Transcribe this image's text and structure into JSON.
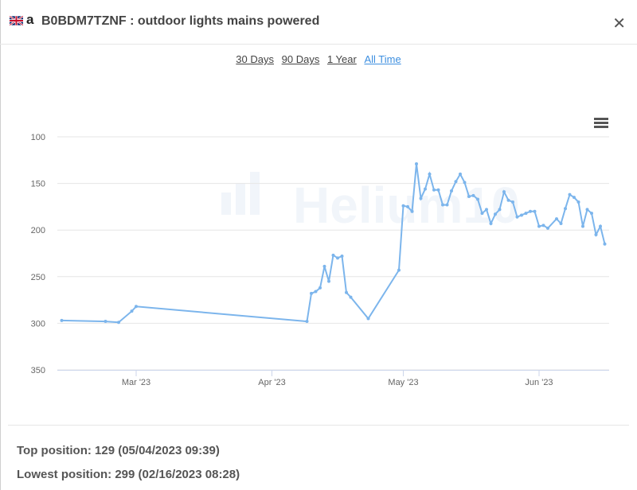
{
  "header": {
    "flag": "uk-flag-icon",
    "marketplace_icon": "amazon-icon",
    "title": "B0BDM7TZNF : outdoor lights mains powered",
    "close_icon": "close-icon"
  },
  "ranges": [
    {
      "label": "30 Days",
      "active": false
    },
    {
      "label": "90 Days",
      "active": false
    },
    {
      "label": "1 Year",
      "active": false
    },
    {
      "label": "All Time",
      "active": true
    }
  ],
  "chart_data": {
    "type": "line",
    "title": "",
    "xlabel": "",
    "ylabel": "",
    "y_reversed": true,
    "ylim": [
      350,
      100
    ],
    "y_ticks": [
      100,
      150,
      200,
      250,
      300,
      350
    ],
    "xlim": [
      "2023-02-11",
      "2023-06-17"
    ],
    "x_ticks": [
      {
        "date": "2023-03-01",
        "label": "Mar '23"
      },
      {
        "date": "2023-04-01",
        "label": "Apr '23"
      },
      {
        "date": "2023-05-01",
        "label": "May '23"
      },
      {
        "date": "2023-06-01",
        "label": "Jun '23"
      }
    ],
    "grid": true,
    "legend": "none",
    "watermark": "Helium10",
    "line_color": "#7cb5ec",
    "series": [
      {
        "name": "",
        "points": [
          [
            "2023-02-12",
            297
          ],
          [
            "2023-02-22",
            298
          ],
          [
            "2023-02-25",
            299
          ],
          [
            "2023-02-28",
            287
          ],
          [
            "2023-03-01",
            282
          ],
          [
            "2023-04-09",
            298
          ],
          [
            "2023-04-10",
            268
          ],
          [
            "2023-04-11",
            266
          ],
          [
            "2023-04-12",
            262
          ],
          [
            "2023-04-13",
            239
          ],
          [
            "2023-04-14",
            255
          ],
          [
            "2023-04-15",
            227
          ],
          [
            "2023-04-16",
            230
          ],
          [
            "2023-04-17",
            228
          ],
          [
            "2023-04-18",
            267
          ],
          [
            "2023-04-19",
            272
          ],
          [
            "2023-04-23",
            295
          ],
          [
            "2023-04-30",
            243
          ],
          [
            "2023-05-01",
            174
          ],
          [
            "2023-05-02",
            175
          ],
          [
            "2023-05-03",
            180
          ],
          [
            "2023-05-04",
            129
          ],
          [
            "2023-05-05",
            166
          ],
          [
            "2023-05-06",
            156
          ],
          [
            "2023-05-07",
            140
          ],
          [
            "2023-05-08",
            157
          ],
          [
            "2023-05-09",
            157
          ],
          [
            "2023-05-10",
            173
          ],
          [
            "2023-05-11",
            173
          ],
          [
            "2023-05-12",
            158
          ],
          [
            "2023-05-13",
            148
          ],
          [
            "2023-05-14",
            140
          ],
          [
            "2023-05-15",
            149
          ],
          [
            "2023-05-16",
            164
          ],
          [
            "2023-05-17",
            163
          ],
          [
            "2023-05-18",
            167
          ],
          [
            "2023-05-19",
            182
          ],
          [
            "2023-05-20",
            178
          ],
          [
            "2023-05-21",
            193
          ],
          [
            "2023-05-22",
            183
          ],
          [
            "2023-05-23",
            178
          ],
          [
            "2023-05-24",
            159
          ],
          [
            "2023-05-25",
            168
          ],
          [
            "2023-05-26",
            170
          ],
          [
            "2023-05-27",
            186
          ],
          [
            "2023-05-28",
            184
          ],
          [
            "2023-05-29",
            182
          ],
          [
            "2023-05-30",
            180
          ],
          [
            "2023-05-31",
            180
          ],
          [
            "2023-06-01",
            196
          ],
          [
            "2023-06-02",
            195
          ],
          [
            "2023-06-03",
            198
          ],
          [
            "2023-06-05",
            188
          ],
          [
            "2023-06-06",
            193
          ],
          [
            "2023-06-07",
            177
          ],
          [
            "2023-06-08",
            162
          ],
          [
            "2023-06-09",
            165
          ],
          [
            "2023-06-10",
            170
          ],
          [
            "2023-06-11",
            196
          ],
          [
            "2023-06-12",
            178
          ],
          [
            "2023-06-13",
            182
          ],
          [
            "2023-06-14",
            205
          ],
          [
            "2023-06-15",
            196
          ],
          [
            "2023-06-16",
            215
          ]
        ]
      }
    ]
  },
  "stats": {
    "top_position": "Top position: 129 (05/04/2023 09:39)",
    "lowest_position": "Lowest position: 299 (02/16/2023 08:28)"
  },
  "chart_menu_icon": "hamburger-menu-icon"
}
